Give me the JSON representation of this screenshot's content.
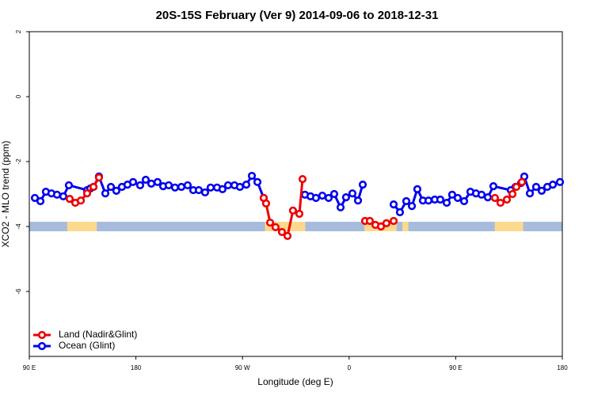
{
  "chart_data": {
    "type": "line",
    "title": "20S-15S February (Ver 9)   2014-09-06 to 2018-12-31",
    "x_label": "Longitude (deg E)",
    "y_label": "XCO2 - MLO trend (ppm)",
    "xlim": [
      90,
      540
    ],
    "xticks": [
      {
        "value": 90,
        "label": "90 E"
      },
      {
        "value": 180,
        "label": "180"
      },
      {
        "value": 270,
        "label": "90 W"
      },
      {
        "value": 360,
        "label": "0"
      },
      {
        "value": 450,
        "label": "90 E"
      },
      {
        "value": 540,
        "label": "180"
      }
    ],
    "ylim": [
      -8,
      2
    ],
    "yticks": [
      -6,
      -4,
      -2,
      0,
      2
    ],
    "legend": "bottom-left",
    "surface_mask": {
      "y": -4,
      "ocean_color": "#a7bcdc",
      "land_color": "#fcd98c",
      "land": [
        [
          122,
          147
        ],
        [
          289,
          323
        ],
        [
          373,
          400
        ],
        [
          405,
          410
        ],
        [
          483,
          507
        ]
      ]
    },
    "series": [
      {
        "name": "Ocean (Glint)",
        "color": "#0000ee",
        "x": [
          94.7,
          99.4,
          104.0,
          108.7,
          113.4,
          118.7,
          123.4,
          138.8,
          141.5,
          144.2,
          148.8,
          154.2,
          158.9,
          163.5,
          168.2,
          172.9,
          177.6,
          183.6,
          188.3,
          193.0,
          198.3,
          203.0,
          207.7,
          213.0,
          218.4,
          223.7,
          228.4,
          233.1,
          238.4,
          243.1,
          248.5,
          253.1,
          257.8,
          263.2,
          267.8,
          273.2,
          277.9,
          282.6,
          287.9,
          null,
          322.7,
          327.4,
          332.0,
          337.4,
          342.7,
          347.4,
          352.8,
          357.4,
          362.8,
          367.5,
          371.5,
          null,
          397.6,
          402.9,
          408.3,
          413.0,
          417.6,
          422.3,
          427.0,
          432.3,
          437.0,
          442.4,
          447.0,
          451.7,
          457.1,
          462.4,
          467.1,
          471.8,
          477.1,
          481.8,
          496.5,
          500.5,
          505.2,
          507.9,
          512.6,
          517.9,
          522.6,
          527.3,
          532.0,
          538.0
        ],
        "values": [
          -3.12,
          -3.22,
          -2.93,
          -2.98,
          -3.02,
          -3.07,
          -2.73,
          -2.88,
          -2.83,
          -2.78,
          -2.46,
          -2.98,
          -2.78,
          -2.9,
          -2.78,
          -2.71,
          -2.63,
          -2.73,
          -2.56,
          -2.68,
          -2.63,
          -2.76,
          -2.73,
          -2.8,
          -2.78,
          -2.73,
          -2.88,
          -2.88,
          -2.95,
          -2.8,
          -2.8,
          -2.85,
          -2.73,
          -2.73,
          -2.78,
          -2.71,
          -2.44,
          -2.63,
          -3.12,
          null,
          -3.02,
          -3.07,
          -3.12,
          -3.05,
          -3.12,
          -3.0,
          -3.41,
          -3.1,
          -2.98,
          -3.2,
          -2.71,
          null,
          -3.32,
          -3.56,
          -3.22,
          -3.37,
          -2.85,
          -3.2,
          -3.2,
          -3.17,
          -3.17,
          -3.27,
          -3.02,
          -3.12,
          -3.22,
          -2.93,
          -2.98,
          -3.02,
          -3.1,
          -2.76,
          -2.88,
          -2.78,
          -2.66,
          -2.46,
          -2.98,
          -2.78,
          -2.9,
          -2.78,
          -2.71,
          -2.63
        ]
      },
      {
        "name": "Land (Nadir&Glint)",
        "color": "#ee0000",
        "x": [
          124.1,
          128.8,
          133.5,
          138.8,
          144.2,
          148.8,
          null,
          287.9,
          289.9,
          293.3,
          297.9,
          303.3,
          308.0,
          312.6,
          318.0,
          320.7,
          null,
          373.5,
          377.5,
          382.2,
          386.9,
          391.5,
          397.6,
          null,
          483.1,
          487.8,
          493.2,
          497.9,
          501.2,
          505.9
        ],
        "values": [
          -3.15,
          -3.27,
          -3.2,
          -2.98,
          -2.78,
          -2.49,
          null,
          -3.12,
          -3.29,
          -3.88,
          -4.02,
          -4.17,
          -4.29,
          -3.51,
          -3.61,
          -2.54,
          null,
          -3.83,
          -3.83,
          -3.95,
          -4.0,
          -3.9,
          -3.83,
          null,
          -3.12,
          -3.27,
          -3.17,
          -3.0,
          -2.78,
          -2.63
        ]
      }
    ]
  }
}
